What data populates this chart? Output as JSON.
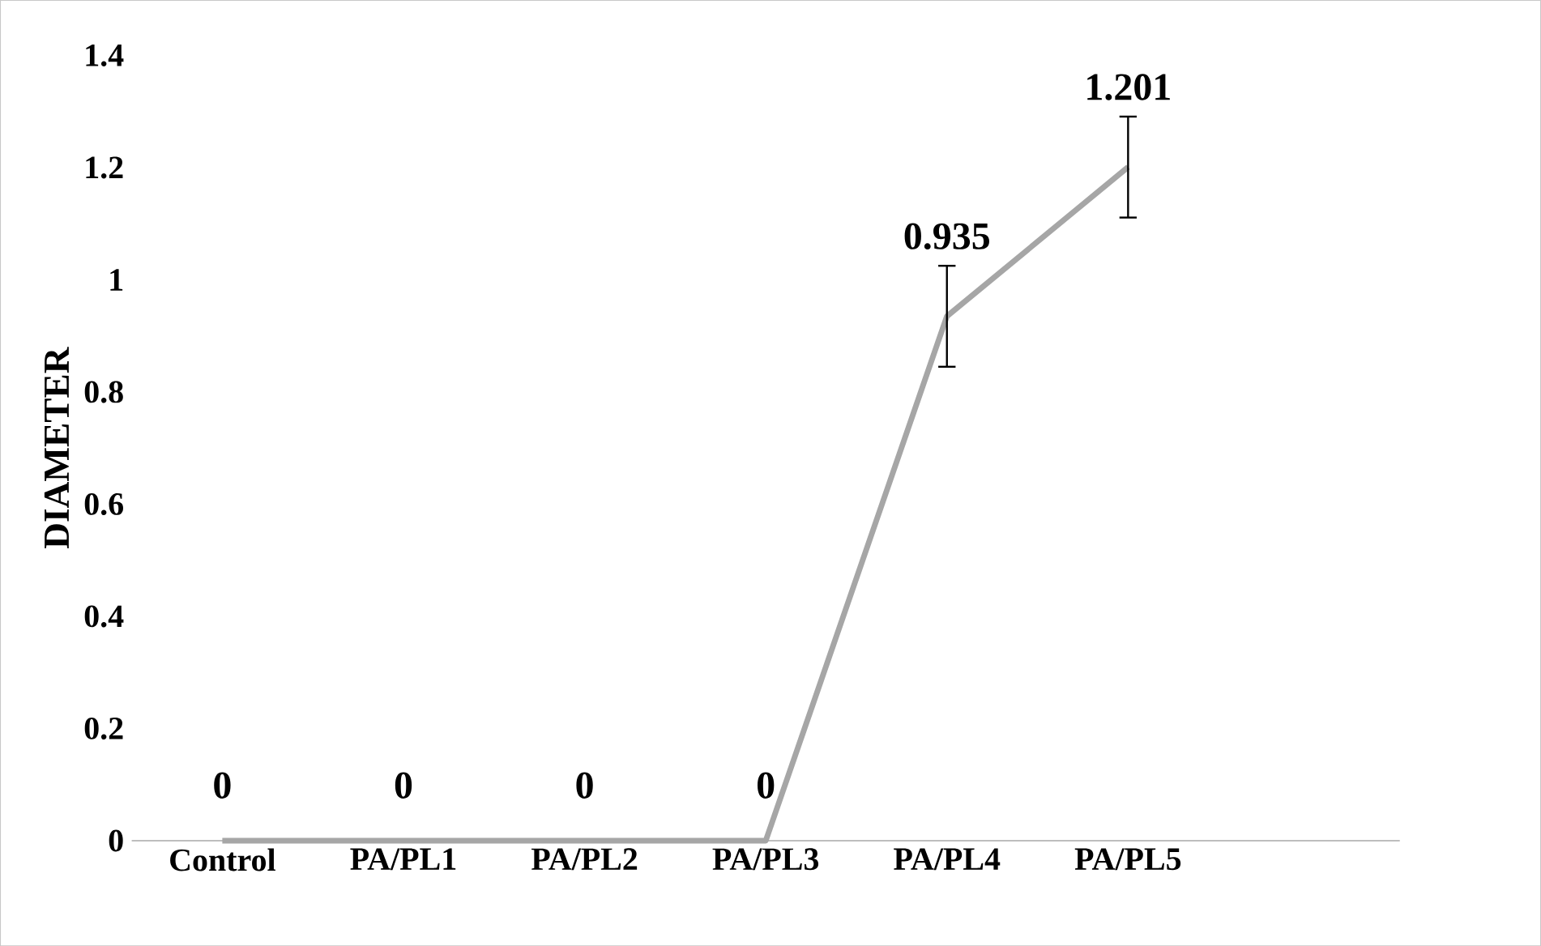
{
  "chart_data": {
    "type": "line",
    "ylabel": "DIAMETER",
    "categories": [
      "Control",
      "PA/PL1",
      "PA/PL2",
      "PA/PL3",
      "PA/PL4",
      "PA/PL5",
      null
    ],
    "values": [
      0,
      0,
      0,
      0,
      0.935,
      1.201,
      null
    ],
    "errors": [
      null,
      null,
      null,
      null,
      0.09,
      0.09,
      null
    ],
    "color": "#a6a6a6",
    "ylim": [
      0,
      1.4
    ],
    "yticks": [
      0,
      0.2,
      0.4,
      0.6,
      0.8,
      1,
      1.2,
      1.4
    ],
    "data_labels": true,
    "marker": "none",
    "line_style": "solid"
  }
}
